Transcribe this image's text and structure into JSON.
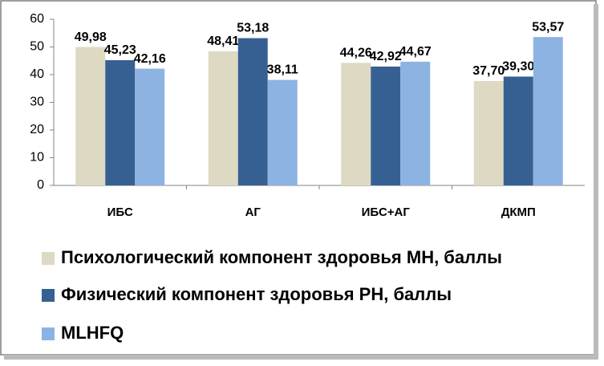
{
  "chart_data": {
    "type": "bar",
    "categories": [
      "ИБС",
      "АГ",
      "ИБС+АГ",
      "ДКМП"
    ],
    "series": [
      {
        "name": "Психологический компонент здоровья МН, баллы",
        "color": "#ddd9c3",
        "values": [
          49.98,
          48.41,
          44.26,
          37.7
        ],
        "value_labels": [
          "49,98",
          "48,41",
          "44,26",
          "37,70"
        ]
      },
      {
        "name": "Физический компонент здоровья РН, баллы",
        "color": "#376092",
        "values": [
          45.23,
          53.18,
          42.92,
          39.3
        ],
        "value_labels": [
          "45,23",
          "53,18",
          "42,92",
          "39,30"
        ]
      },
      {
        "name": "MLHFQ",
        "color": "#8db3e2",
        "values": [
          42.16,
          38.11,
          44.67,
          53.57
        ],
        "value_labels": [
          "42,16",
          "38,11",
          "44,67",
          "53,57"
        ]
      }
    ],
    "ylim": [
      0,
      60
    ],
    "yticks": [
      0,
      10,
      20,
      30,
      40,
      50,
      60
    ],
    "legend": "bottom"
  }
}
